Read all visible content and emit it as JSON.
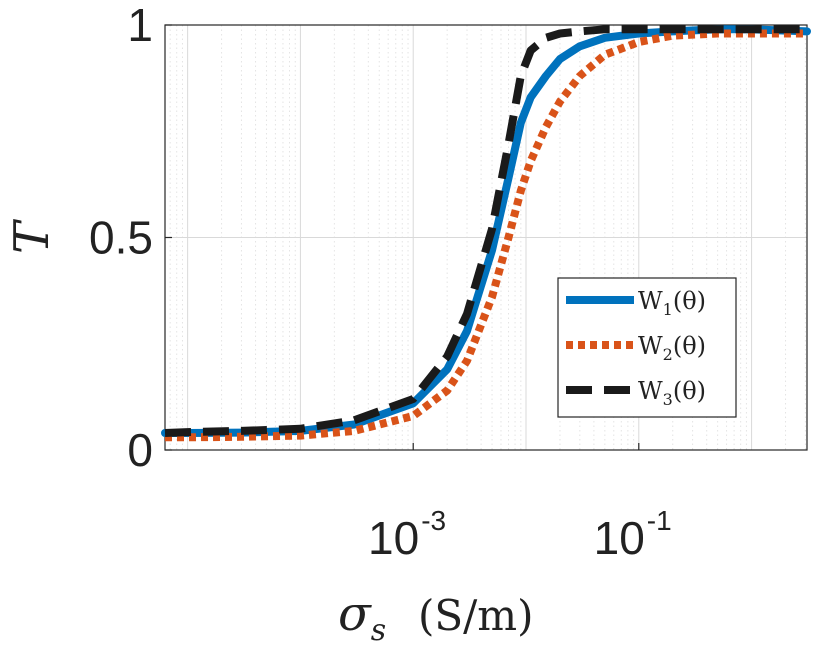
{
  "chart_data": {
    "type": "line",
    "title": "",
    "xscale": "log",
    "xlim": [
      6.3e-06,
      3.1
    ],
    "ylim": [
      0,
      1
    ],
    "xlabel": "σ",
    "xlabel_sub": "s",
    "xlabel_unit": "(S/m)",
    "ylabel": "T",
    "grid": "major and minor",
    "legend_position": "right-middle",
    "y_ticks": [
      "0",
      "0.5",
      "1"
    ],
    "x_ticks": [
      {
        "value": 0.001,
        "base": "10",
        "exp": "-3"
      },
      {
        "value": 0.1,
        "base": "10",
        "exp": "-1"
      }
    ],
    "x": [
      6.3e-06,
      1e-05,
      3e-05,
      0.0001,
      0.0003,
      0.001,
      0.002,
      0.003,
      0.005,
      0.007,
      0.009,
      0.011,
      0.015,
      0.02,
      0.03,
      0.05,
      0.1,
      0.2,
      0.5,
      1,
      3.1
    ],
    "series": [
      {
        "name": "W",
        "sub": "1",
        "arg": "(θ)",
        "color": "#0072BD",
        "style": "solid",
        "values": [
          0.04,
          0.04,
          0.041,
          0.045,
          0.06,
          0.11,
          0.19,
          0.28,
          0.47,
          0.64,
          0.77,
          0.83,
          0.88,
          0.92,
          0.95,
          0.97,
          0.98,
          0.985,
          0.99,
          0.99,
          0.985
        ]
      },
      {
        "name": "W",
        "sub": "2",
        "arg": "(θ)",
        "color": "#D95319",
        "style": "dotted",
        "values": [
          0.03,
          0.03,
          0.031,
          0.034,
          0.045,
          0.08,
          0.14,
          0.21,
          0.36,
          0.5,
          0.61,
          0.68,
          0.76,
          0.82,
          0.88,
          0.93,
          0.96,
          0.975,
          0.98,
          0.98,
          0.98
        ]
      },
      {
        "name": "W",
        "sub": "3",
        "arg": "(θ)",
        "color": "#1a1a1a",
        "style": "dashed",
        "values": [
          0.04,
          0.042,
          0.045,
          0.05,
          0.07,
          0.12,
          0.22,
          0.32,
          0.52,
          0.72,
          0.88,
          0.94,
          0.97,
          0.98,
          0.985,
          0.99,
          0.99,
          0.99,
          0.99,
          0.99,
          0.99
        ]
      }
    ]
  }
}
